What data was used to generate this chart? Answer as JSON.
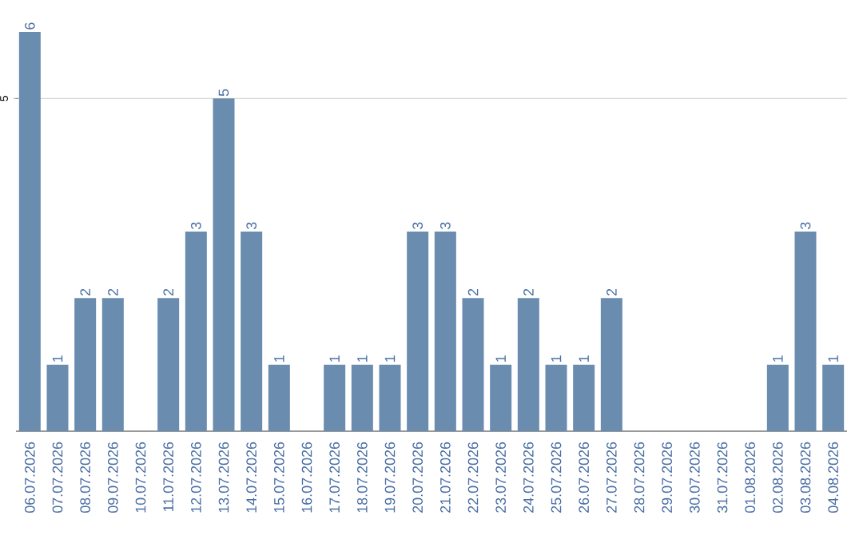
{
  "chart_data": {
    "type": "bar",
    "categories": [
      "06.07.2026",
      "07.07.2026",
      "08.07.2026",
      "09.07.2026",
      "10.07.2026",
      "11.07.2026",
      "12.07.2026",
      "13.07.2026",
      "14.07.2026",
      "15.07.2026",
      "16.07.2026",
      "17.07.2026",
      "18.07.2026",
      "19.07.2026",
      "20.07.2026",
      "21.07.2026",
      "22.07.2026",
      "23.07.2026",
      "24.07.2026",
      "25.07.2026",
      "26.07.2026",
      "27.07.2026",
      "28.07.2026",
      "29.07.2026",
      "30.07.2026",
      "31.07.2026",
      "01.08.2026",
      "02.08.2026",
      "03.08.2026",
      "04.08.2026"
    ],
    "values": [
      6,
      1,
      2,
      2,
      0,
      2,
      3,
      5,
      3,
      1,
      0,
      1,
      1,
      1,
      3,
      3,
      2,
      1,
      2,
      1,
      1,
      2,
      0,
      0,
      0,
      0,
      0,
      1,
      3,
      1
    ],
    "value_labels": [
      "6",
      "1",
      "2",
      "2",
      null,
      "2",
      "3",
      "5",
      "3",
      "1",
      null,
      "1",
      "1",
      "1",
      "3",
      "3",
      "2",
      "1",
      "2",
      "1",
      "1",
      "2",
      null,
      null,
      null,
      null,
      null,
      "1",
      "3",
      "1"
    ],
    "color": "#6a8caf",
    "ylim": [
      0,
      6
    ],
    "yticks": [
      5
    ],
    "grid": "y"
  }
}
